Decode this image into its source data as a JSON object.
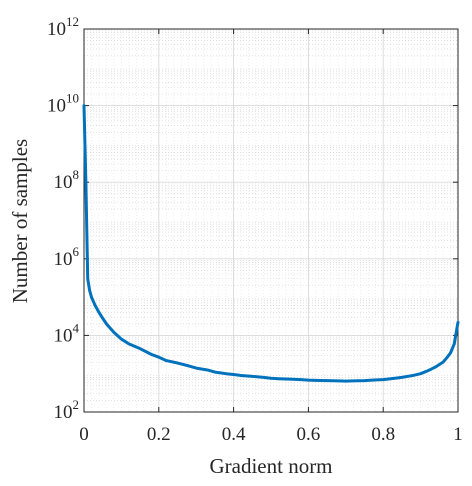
{
  "chart_data": {
    "type": "line",
    "title": "",
    "xlabel": "Gradient norm",
    "ylabel": "Number of samples",
    "xlim": [
      0,
      1
    ],
    "ylim": [
      100,
      1000000000000
    ],
    "y_scale": "log",
    "grid": true,
    "minor_grid": true,
    "line_color": "#0072BD",
    "x_ticks": [
      {
        "value": 0,
        "label": "0"
      },
      {
        "value": 0.2,
        "label": "0.2"
      },
      {
        "value": 0.4,
        "label": "0.4"
      },
      {
        "value": 0.6,
        "label": "0.6"
      },
      {
        "value": 0.8,
        "label": "0.8"
      },
      {
        "value": 1,
        "label": "1"
      }
    ],
    "y_ticks": [
      {
        "value": 100,
        "base": "10",
        "exp": "2"
      },
      {
        "value": 10000,
        "base": "10",
        "exp": "4"
      },
      {
        "value": 1000000,
        "base": "10",
        "exp": "6"
      },
      {
        "value": 100000000,
        "base": "10",
        "exp": "8"
      },
      {
        "value": 10000000000,
        "base": "10",
        "exp": "10"
      },
      {
        "value": 1000000000000,
        "base": "10",
        "exp": "12"
      }
    ],
    "series": [
      {
        "x": [
          0.0,
          0.005,
          0.01,
          0.015,
          0.02,
          0.03,
          0.04,
          0.05,
          0.06,
          0.08,
          0.1,
          0.12,
          0.15,
          0.18,
          0.2,
          0.22,
          0.25,
          0.28,
          0.3,
          0.33,
          0.35,
          0.38,
          0.4,
          0.42,
          0.45,
          0.48,
          0.5,
          0.52,
          0.55,
          0.58,
          0.6,
          0.62,
          0.65,
          0.68,
          0.7,
          0.72,
          0.75,
          0.77,
          0.8,
          0.82,
          0.85,
          0.88,
          0.9,
          0.92,
          0.94,
          0.96,
          0.97,
          0.98,
          0.99,
          1.0
        ],
        "y": [
          10000000000,
          100000000,
          300000,
          150000,
          100000,
          60000,
          40000,
          28000,
          20000,
          12000,
          8000,
          6000,
          4500,
          3200,
          2700,
          2200,
          1900,
          1600,
          1400,
          1250,
          1100,
          1000,
          950,
          900,
          850,
          800,
          760,
          740,
          720,
          700,
          680,
          670,
          660,
          650,
          640,
          650,
          660,
          680,
          700,
          740,
          800,
          900,
          1000,
          1200,
          1500,
          2000,
          2600,
          3500,
          6000,
          22000
        ]
      }
    ]
  }
}
